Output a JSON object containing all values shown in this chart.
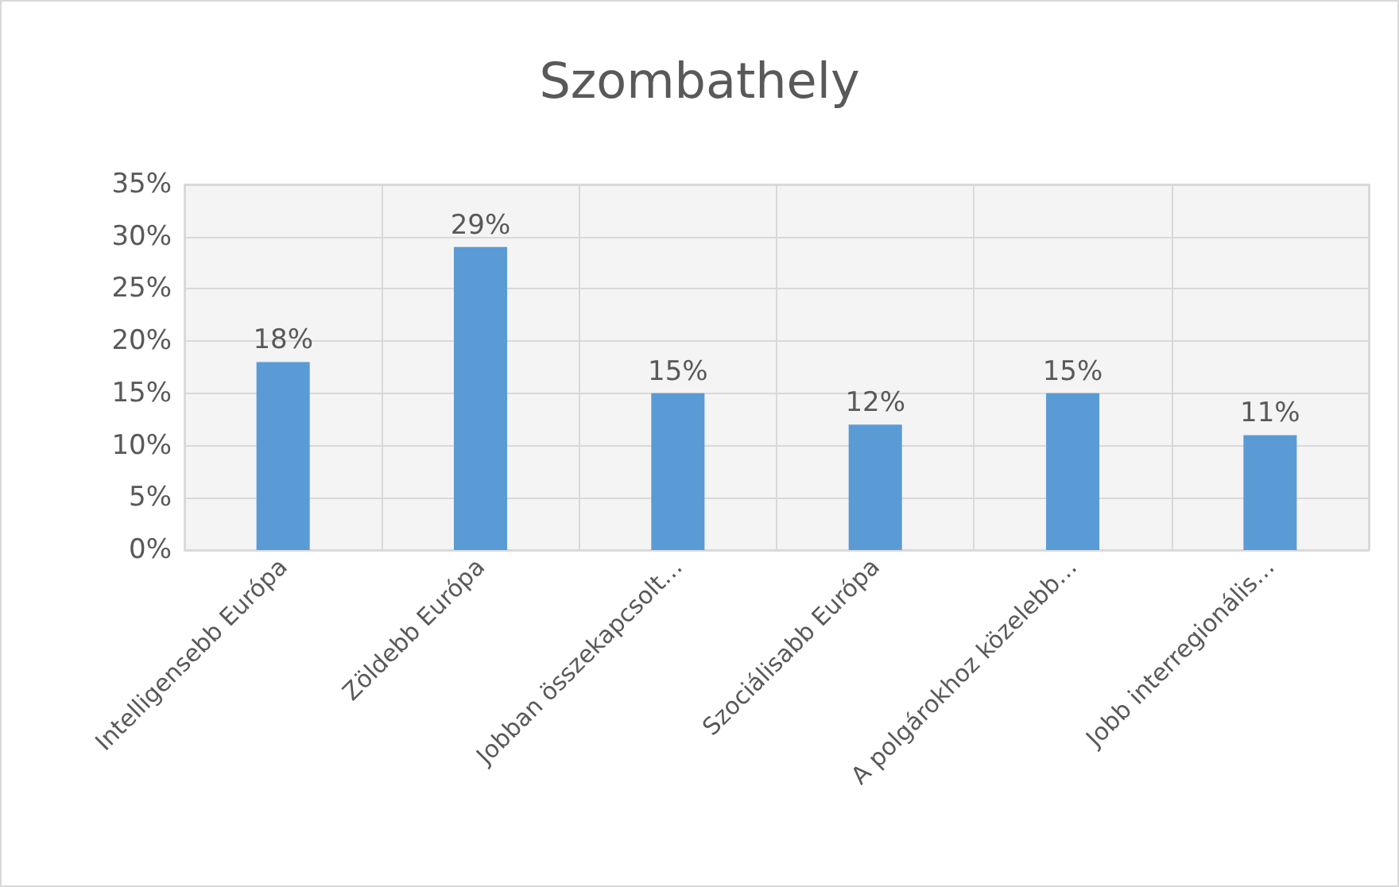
{
  "chart_data": {
    "type": "bar",
    "title": "Szombathely",
    "categories": [
      "Intelligensebb Európa",
      "Zöldebb Európa",
      "Jobban összekapcsolt…",
      "Szociálisabb Európa",
      "A polgárokhoz közelebb…",
      "Jobb interregionális…"
    ],
    "values": [
      18,
      29,
      15,
      12,
      15,
      11
    ],
    "color": "#5b9bd5",
    "value_labels": [
      "18%",
      "29%",
      "15%",
      "12%",
      "15%",
      "11%"
    ],
    "ylim": [
      0,
      35
    ],
    "yticks": [
      {
        "value": 0,
        "label": "0%"
      },
      {
        "value": 5,
        "label": "5%"
      },
      {
        "value": 10,
        "label": "10%"
      },
      {
        "value": 15,
        "label": "15%"
      },
      {
        "value": 20,
        "label": "20%"
      },
      {
        "value": 25,
        "label": "25%"
      },
      {
        "value": 30,
        "label": "30%"
      },
      {
        "value": 35,
        "label": "35%"
      }
    ],
    "grid": true
  }
}
